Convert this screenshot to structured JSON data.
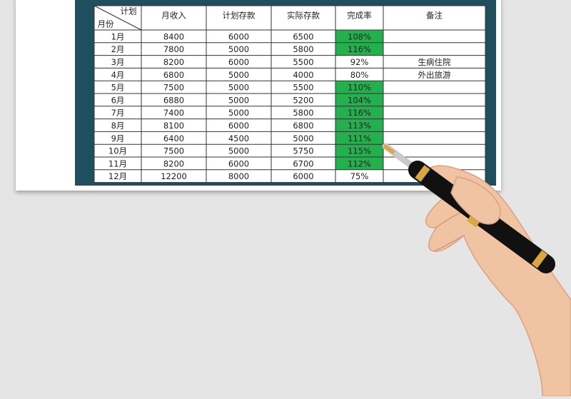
{
  "table": {
    "corner_top": "计划",
    "corner_bottom": "月份",
    "header": [
      "月收入",
      "计划存款",
      "实际存款",
      "完成率",
      "备注"
    ],
    "highlight_color": "#22b14c",
    "rows": [
      [
        "1月",
        "8400",
        "6000",
        "6500",
        "108%",
        ""
      ],
      [
        "2月",
        "7800",
        "5000",
        "5800",
        "116%",
        ""
      ],
      [
        "3月",
        "8200",
        "6000",
        "5500",
        "92%",
        "生病住院"
      ],
      [
        "4月",
        "6800",
        "5000",
        "4000",
        "80%",
        "外出旅游"
      ],
      [
        "5月",
        "7500",
        "5000",
        "5500",
        "110%",
        ""
      ],
      [
        "6月",
        "6880",
        "5000",
        "5200",
        "104%",
        ""
      ],
      [
        "7月",
        "7400",
        "5000",
        "5800",
        "116%",
        ""
      ],
      [
        "8月",
        "8100",
        "6000",
        "6800",
        "113%",
        ""
      ],
      [
        "9月",
        "6400",
        "4500",
        "5000",
        "111%",
        ""
      ],
      [
        "10月",
        "7500",
        "5000",
        "5750",
        "115%",
        ""
      ],
      [
        "11月",
        "8200",
        "6000",
        "6700",
        "112%",
        ""
      ],
      [
        "12月",
        "12200",
        "8000",
        "6000",
        "75%",
        ""
      ]
    ]
  }
}
